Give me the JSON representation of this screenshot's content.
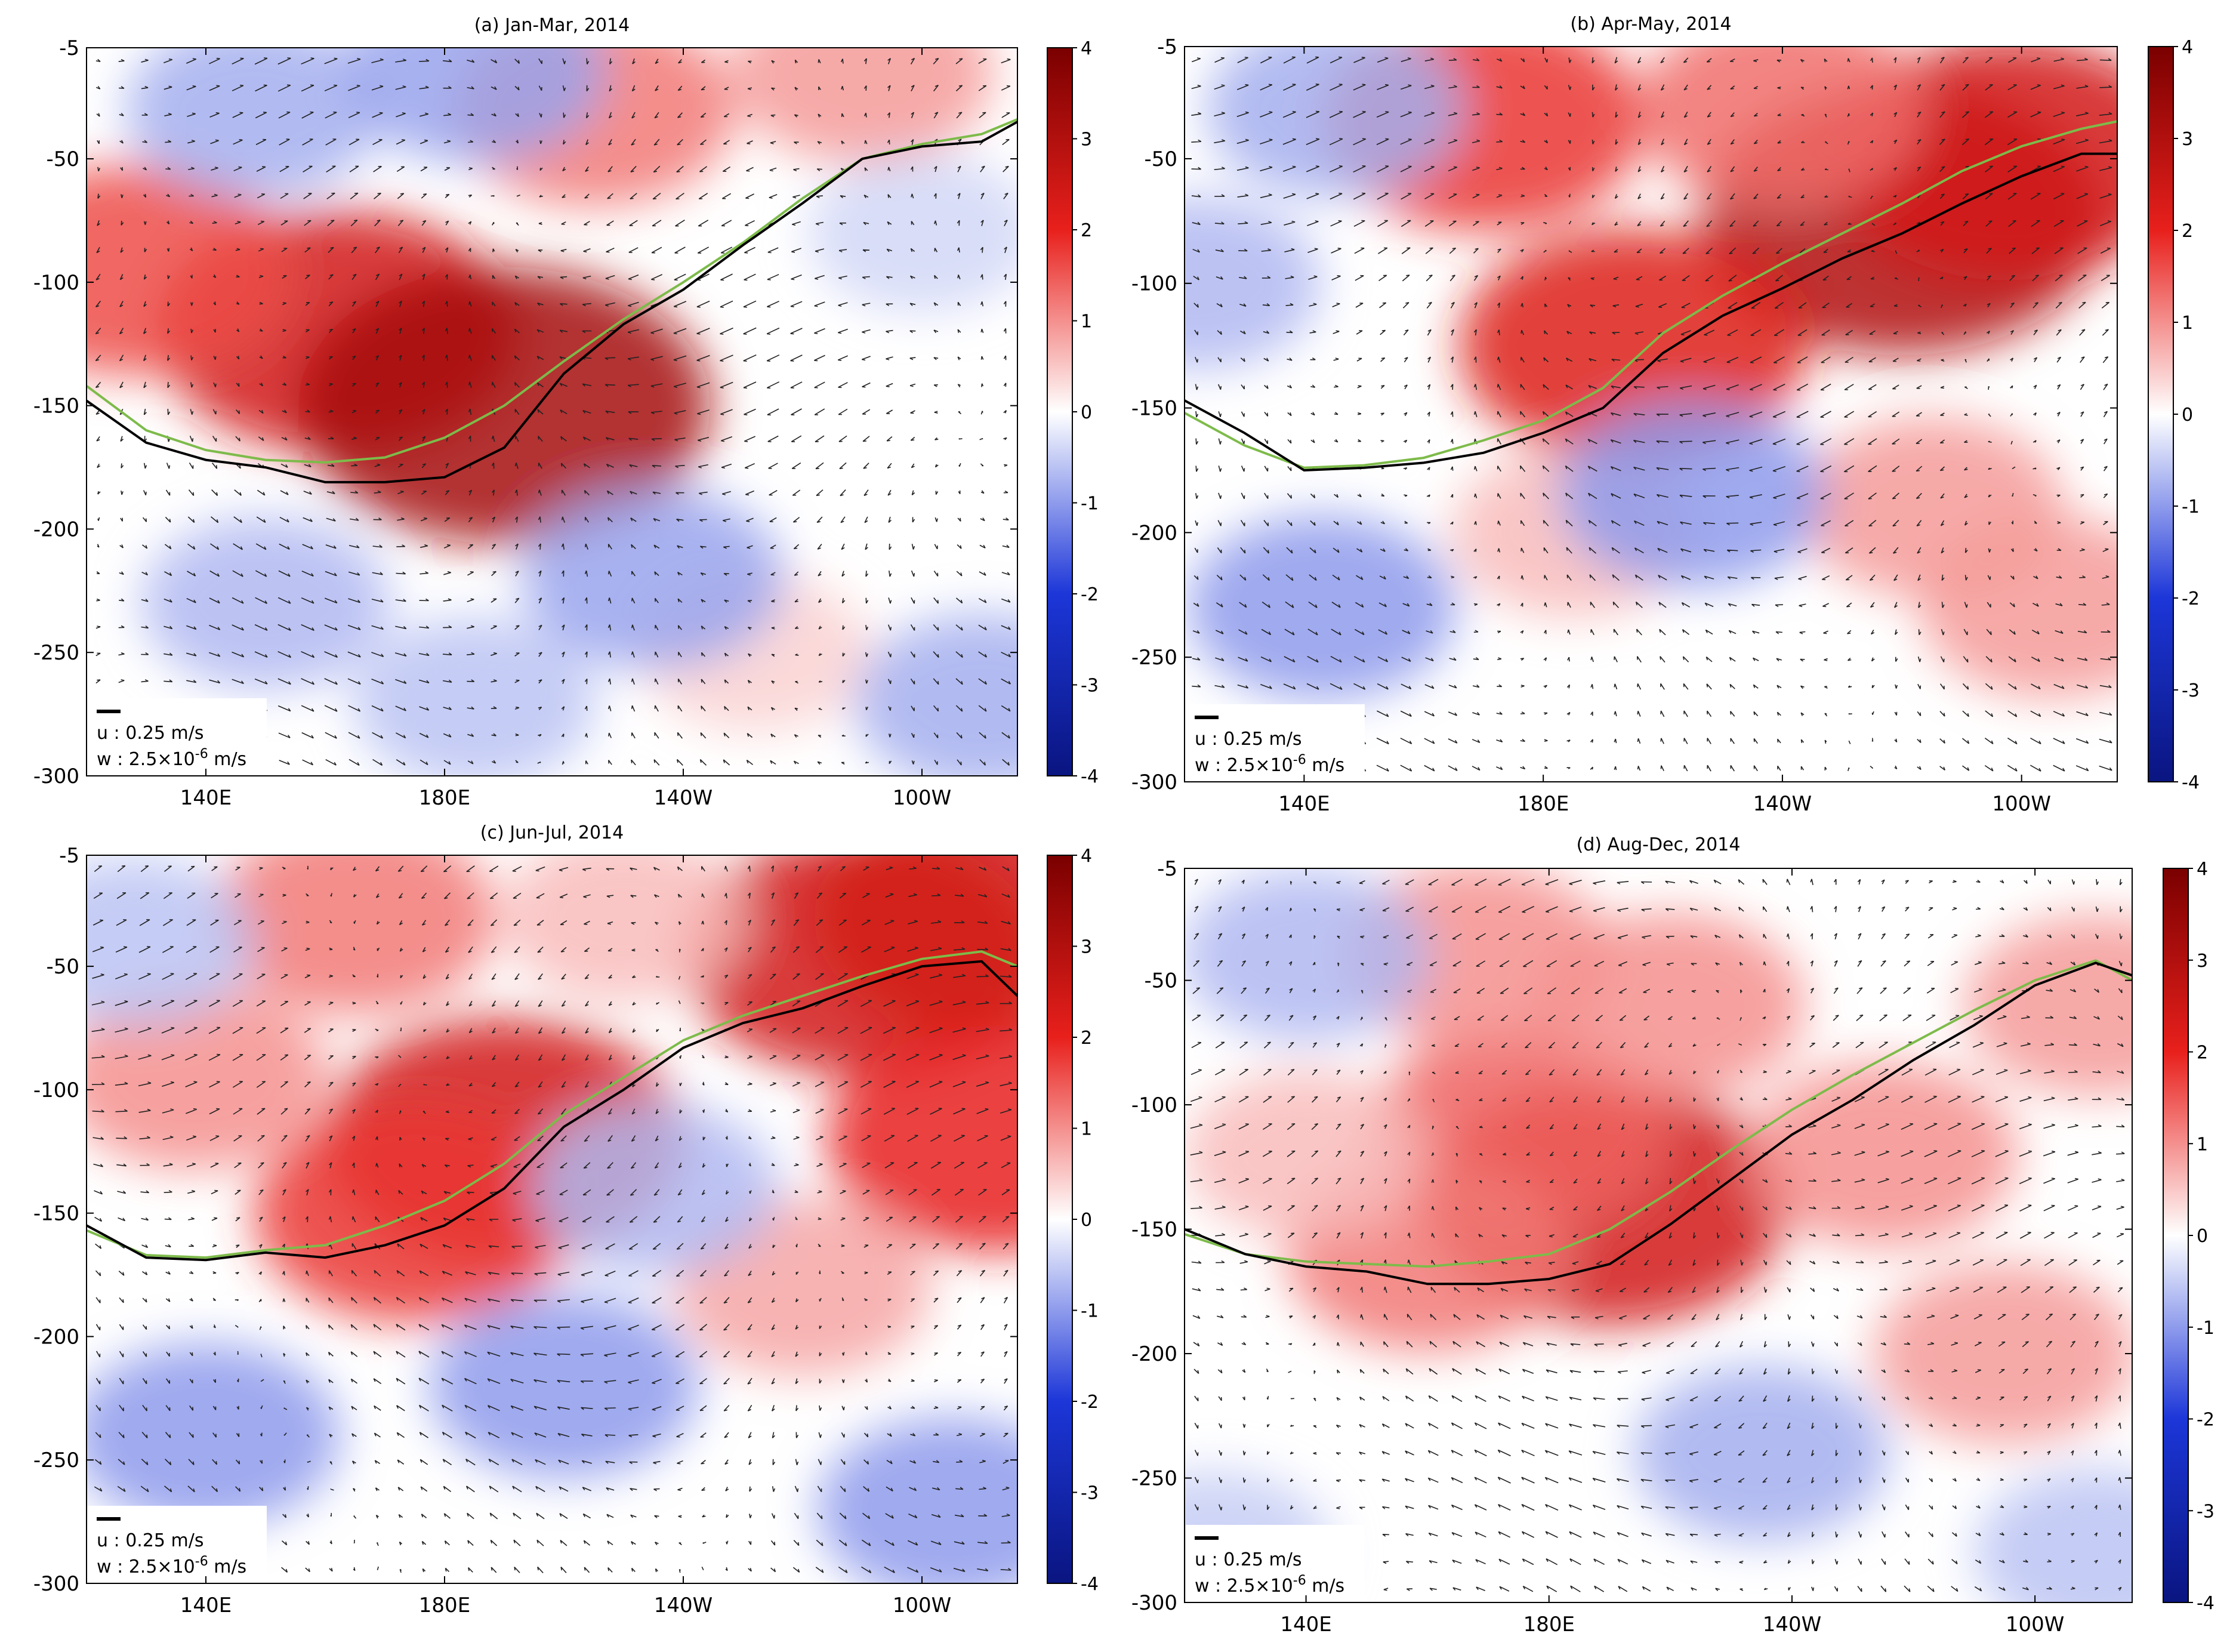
{
  "figure": {
    "colormap": {
      "min": -4,
      "max": 4,
      "low": "#0a1580",
      "mid": "#ffffff",
      "high": "#7a0000",
      "red": "#e8201c",
      "blue": "#1c36d8"
    },
    "thermocline_colors": {
      "observed": "#000000",
      "reference": "#7dbb4a"
    },
    "arrow_color": "#222222"
  },
  "chart_data": [
    {
      "id": "a",
      "type": "heatmap",
      "title": "(a) Jan-Mar, 2014",
      "x_ticks": [
        "140E",
        "180E",
        "140W",
        "100W"
      ],
      "x_tick_values": [
        140,
        180,
        220,
        260
      ],
      "xlim": [
        120,
        276
      ],
      "ylim": [
        -300,
        -5
      ],
      "y_ticks": [
        "-5",
        "-50",
        "-100",
        "-150",
        "-200",
        "-250",
        "-300"
      ],
      "y_tick_values": [
        -5,
        -50,
        -100,
        -150,
        -200,
        -250,
        -300
      ],
      "colorbar": {
        "ticks": [
          "4",
          "3",
          "2",
          "1",
          "0",
          "-1",
          "-2",
          "-3",
          "-4"
        ],
        "values": [
          4,
          3,
          2,
          1,
          0,
          -1,
          -2,
          -3,
          -4
        ]
      },
      "legend": {
        "u_label": "u : 0.25 m/s",
        "w_label_main": "w : 2.5×10",
        "w_label_exp": "-6",
        "w_label_unit": " m/s",
        "location": "bottom-left"
      },
      "anomaly_blobs": [
        {
          "lon": 162,
          "depth": -120,
          "value": 2.4
        },
        {
          "lon": 190,
          "depth": -150,
          "value": 3.2
        },
        {
          "lon": 128,
          "depth": -95,
          "value": 1.6
        },
        {
          "lon": 205,
          "depth": -30,
          "value": 1.2
        },
        {
          "lon": 250,
          "depth": -15,
          "value": 0.9
        },
        {
          "lon": 232,
          "depth": -250,
          "value": 0.4
        },
        {
          "lon": 215,
          "depth": -220,
          "value": -0.9
        },
        {
          "lon": 150,
          "depth": -230,
          "value": -0.7
        },
        {
          "lon": 185,
          "depth": -270,
          "value": -0.6
        },
        {
          "lon": 270,
          "depth": -270,
          "value": -0.8
        },
        {
          "lon": 148,
          "depth": -30,
          "value": -0.8
        },
        {
          "lon": 185,
          "depth": -15,
          "value": -0.9
        },
        {
          "lon": 260,
          "depth": -80,
          "value": -0.4
        }
      ],
      "thermocline_observed": [
        [
          120,
          -148
        ],
        [
          130,
          -165
        ],
        [
          140,
          -172
        ],
        [
          150,
          -175
        ],
        [
          160,
          -181
        ],
        [
          170,
          -181
        ],
        [
          180,
          -179
        ],
        [
          190,
          -167
        ],
        [
          200,
          -137
        ],
        [
          210,
          -117
        ],
        [
          220,
          -103
        ],
        [
          230,
          -85
        ],
        [
          240,
          -68
        ],
        [
          250,
          -50
        ],
        [
          260,
          -45
        ],
        [
          270,
          -43
        ],
        [
          276,
          -35
        ]
      ],
      "thermocline_reference": [
        [
          120,
          -142
        ],
        [
          130,
          -160
        ],
        [
          140,
          -168
        ],
        [
          150,
          -172
        ],
        [
          160,
          -173
        ],
        [
          170,
          -171
        ],
        [
          180,
          -163
        ],
        [
          190,
          -150
        ],
        [
          200,
          -132
        ],
        [
          210,
          -115
        ],
        [
          220,
          -100
        ],
        [
          230,
          -84
        ],
        [
          240,
          -66
        ],
        [
          250,
          -50
        ],
        [
          260,
          -44
        ],
        [
          270,
          -40
        ],
        [
          276,
          -34
        ]
      ]
    },
    {
      "id": "b",
      "type": "heatmap",
      "title": "(b) Apr-May, 2014",
      "x_ticks": [
        "140E",
        "180E",
        "140W",
        "100W"
      ],
      "x_tick_values": [
        140,
        180,
        220,
        260
      ],
      "xlim": [
        120,
        276
      ],
      "ylim": [
        -300,
        -5
      ],
      "y_ticks": [
        "-5",
        "-50",
        "-100",
        "-150",
        "-200",
        "-250",
        "-300"
      ],
      "y_tick_values": [
        -5,
        -50,
        -100,
        -150,
        -200,
        -250,
        -300
      ],
      "colorbar": {
        "ticks": [
          "4",
          "3",
          "2",
          "1",
          "0",
          "-1",
          "-2",
          "-3",
          "-4"
        ],
        "values": [
          4,
          3,
          2,
          1,
          0,
          -1,
          -2,
          -3,
          -4
        ]
      },
      "legend": {
        "u_label": "u : 0.25 m/s",
        "w_label_main": "w : 2.5×10",
        "w_label_exp": "-6",
        "w_label_unit": " m/s",
        "location": "bottom-left"
      },
      "anomaly_blobs": [
        {
          "lon": 240,
          "depth": -75,
          "value": 3.0
        },
        {
          "lon": 258,
          "depth": -50,
          "value": 2.4
        },
        {
          "lon": 195,
          "depth": -125,
          "value": 2.2
        },
        {
          "lon": 170,
          "depth": -35,
          "value": 1.8
        },
        {
          "lon": 220,
          "depth": -30,
          "value": 1.3
        },
        {
          "lon": 245,
          "depth": -190,
          "value": 0.9
        },
        {
          "lon": 265,
          "depth": -230,
          "value": 0.9
        },
        {
          "lon": 185,
          "depth": -200,
          "value": 0.6
        },
        {
          "lon": 143,
          "depth": -230,
          "value": -1.0
        },
        {
          "lon": 205,
          "depth": -185,
          "value": -1.0
        },
        {
          "lon": 145,
          "depth": -30,
          "value": -0.8
        },
        {
          "lon": 122,
          "depth": -100,
          "value": -0.7
        }
      ],
      "thermocline_observed": [
        [
          120,
          -147
        ],
        [
          130,
          -160
        ],
        [
          140,
          -175
        ],
        [
          150,
          -174
        ],
        [
          160,
          -172
        ],
        [
          170,
          -168
        ],
        [
          180,
          -160
        ],
        [
          190,
          -150
        ],
        [
          200,
          -128
        ],
        [
          210,
          -113
        ],
        [
          220,
          -102
        ],
        [
          230,
          -90
        ],
        [
          240,
          -80
        ],
        [
          250,
          -68
        ],
        [
          260,
          -57
        ],
        [
          270,
          -48
        ],
        [
          276,
          -48
        ]
      ],
      "thermocline_reference": [
        [
          120,
          -152
        ],
        [
          130,
          -165
        ],
        [
          140,
          -174
        ],
        [
          150,
          -173
        ],
        [
          160,
          -170
        ],
        [
          170,
          -163
        ],
        [
          180,
          -155
        ],
        [
          190,
          -142
        ],
        [
          200,
          -120
        ],
        [
          210,
          -105
        ],
        [
          220,
          -92
        ],
        [
          230,
          -80
        ],
        [
          240,
          -68
        ],
        [
          250,
          -55
        ],
        [
          260,
          -45
        ],
        [
          270,
          -38
        ],
        [
          276,
          -35
        ]
      ]
    },
    {
      "id": "c",
      "type": "heatmap",
      "title": "(c) Jun-Jul, 2014",
      "x_ticks": [
        "140E",
        "180E",
        "140W",
        "100W"
      ],
      "x_tick_values": [
        140,
        180,
        220,
        260
      ],
      "xlim": [
        120,
        276
      ],
      "ylim": [
        -300,
        -5
      ],
      "y_ticks": [
        "-5",
        "-50",
        "-100",
        "-150",
        "-200",
        "-250",
        "-300"
      ],
      "y_tick_values": [
        -5,
        -50,
        -100,
        -150,
        -200,
        -250,
        -300
      ],
      "colorbar": {
        "ticks": [
          "4",
          "3",
          "2",
          "1",
          "0",
          "-1",
          "-2",
          "-3",
          "-4"
        ],
        "values": [
          4,
          3,
          2,
          1,
          0,
          -1,
          -2,
          -3,
          -4
        ]
      },
      "legend": {
        "u_label": "u : 0.25 m/s",
        "w_label_main": "w : 2.5×10",
        "w_label_exp": "-6",
        "w_label_unit": " m/s",
        "location": "bottom-left"
      },
      "anomaly_blobs": [
        {
          "lon": 190,
          "depth": -120,
          "value": 2.4
        },
        {
          "lon": 175,
          "depth": -150,
          "value": 1.8
        },
        {
          "lon": 250,
          "depth": -45,
          "value": 2.4
        },
        {
          "lon": 272,
          "depth": -30,
          "value": 2.4
        },
        {
          "lon": 272,
          "depth": -120,
          "value": 2.0
        },
        {
          "lon": 165,
          "depth": -30,
          "value": 1.2
        },
        {
          "lon": 138,
          "depth": -95,
          "value": 1.0
        },
        {
          "lon": 240,
          "depth": -180,
          "value": 0.8
        },
        {
          "lon": 210,
          "depth": -30,
          "value": 0.6
        },
        {
          "lon": 200,
          "depth": -220,
          "value": -1.0
        },
        {
          "lon": 140,
          "depth": -240,
          "value": -1.0
        },
        {
          "lon": 265,
          "depth": -270,
          "value": -1.0
        },
        {
          "lon": 215,
          "depth": -140,
          "value": -0.7
        },
        {
          "lon": 128,
          "depth": -40,
          "value": -0.6
        }
      ],
      "thermocline_observed": [
        [
          120,
          -155
        ],
        [
          130,
          -168
        ],
        [
          140,
          -169
        ],
        [
          150,
          -166
        ],
        [
          160,
          -168
        ],
        [
          170,
          -163
        ],
        [
          180,
          -155
        ],
        [
          190,
          -140
        ],
        [
          200,
          -115
        ],
        [
          210,
          -100
        ],
        [
          220,
          -83
        ],
        [
          230,
          -73
        ],
        [
          240,
          -67
        ],
        [
          250,
          -58
        ],
        [
          260,
          -50
        ],
        [
          270,
          -48
        ],
        [
          276,
          -62
        ]
      ],
      "thermocline_reference": [
        [
          120,
          -157
        ],
        [
          130,
          -167
        ],
        [
          140,
          -168
        ],
        [
          150,
          -165
        ],
        [
          160,
          -163
        ],
        [
          170,
          -155
        ],
        [
          180,
          -145
        ],
        [
          190,
          -130
        ],
        [
          200,
          -110
        ],
        [
          210,
          -95
        ],
        [
          220,
          -80
        ],
        [
          230,
          -70
        ],
        [
          240,
          -62
        ],
        [
          250,
          -54
        ],
        [
          260,
          -47
        ],
        [
          270,
          -44
        ],
        [
          276,
          -50
        ]
      ]
    },
    {
      "id": "d",
      "type": "heatmap",
      "title": "(d) Aug-Dec, 2014",
      "x_ticks": [
        "140E",
        "180E",
        "140W",
        "100W"
      ],
      "x_tick_values": [
        140,
        180,
        220,
        260
      ],
      "xlim": [
        120,
        276
      ],
      "ylim": [
        -300,
        -5
      ],
      "y_ticks": [
        "-5",
        "-50",
        "-100",
        "-150",
        "-200",
        "-250",
        "-300"
      ],
      "y_tick_values": [
        -5,
        -50,
        -100,
        -150,
        -200,
        -250,
        -300
      ],
      "colorbar": {
        "ticks": [
          "4",
          "3",
          "2",
          "1",
          "0",
          "-1",
          "-2",
          "-3",
          "-4"
        ],
        "values": [
          4,
          3,
          2,
          1,
          0,
          -1,
          -2,
          -3,
          -4
        ]
      },
      "legend": {
        "u_label": "u : 0.25 m/s",
        "w_label_main": "w : 2.5×10",
        "w_label_exp": "-6",
        "w_label_unit": " m/s",
        "location": "bottom-left"
      },
      "anomaly_blobs": [
        {
          "lon": 190,
          "depth": -140,
          "value": 2.4
        },
        {
          "lon": 175,
          "depth": -110,
          "value": 1.4
        },
        {
          "lon": 160,
          "depth": -160,
          "value": 1.2
        },
        {
          "lon": 200,
          "depth": -60,
          "value": 1.0
        },
        {
          "lon": 235,
          "depth": -120,
          "value": 1.0
        },
        {
          "lon": 255,
          "depth": -200,
          "value": 0.9
        },
        {
          "lon": 168,
          "depth": -40,
          "value": 1.0
        },
        {
          "lon": 140,
          "depth": -120,
          "value": 0.6
        },
        {
          "lon": 270,
          "depth": -60,
          "value": 0.9
        },
        {
          "lon": 215,
          "depth": -240,
          "value": -0.8
        },
        {
          "lon": 140,
          "depth": -40,
          "value": -0.7
        },
        {
          "lon": 125,
          "depth": -280,
          "value": -0.5
        },
        {
          "lon": 270,
          "depth": -280,
          "value": -0.6
        }
      ],
      "thermocline_observed": [
        [
          120,
          -150
        ],
        [
          130,
          -160
        ],
        [
          140,
          -165
        ],
        [
          150,
          -167
        ],
        [
          160,
          -172
        ],
        [
          170,
          -172
        ],
        [
          180,
          -170
        ],
        [
          190,
          -164
        ],
        [
          200,
          -148
        ],
        [
          210,
          -130
        ],
        [
          220,
          -112
        ],
        [
          230,
          -98
        ],
        [
          240,
          -82
        ],
        [
          250,
          -68
        ],
        [
          260,
          -52
        ],
        [
          270,
          -43
        ],
        [
          276,
          -48
        ]
      ],
      "thermocline_reference": [
        [
          120,
          -152
        ],
        [
          130,
          -160
        ],
        [
          140,
          -163
        ],
        [
          150,
          -164
        ],
        [
          160,
          -165
        ],
        [
          170,
          -163
        ],
        [
          180,
          -160
        ],
        [
          190,
          -150
        ],
        [
          200,
          -135
        ],
        [
          210,
          -118
        ],
        [
          220,
          -102
        ],
        [
          230,
          -88
        ],
        [
          240,
          -75
        ],
        [
          250,
          -62
        ],
        [
          260,
          -50
        ],
        [
          270,
          -42
        ],
        [
          276,
          -50
        ]
      ]
    }
  ]
}
